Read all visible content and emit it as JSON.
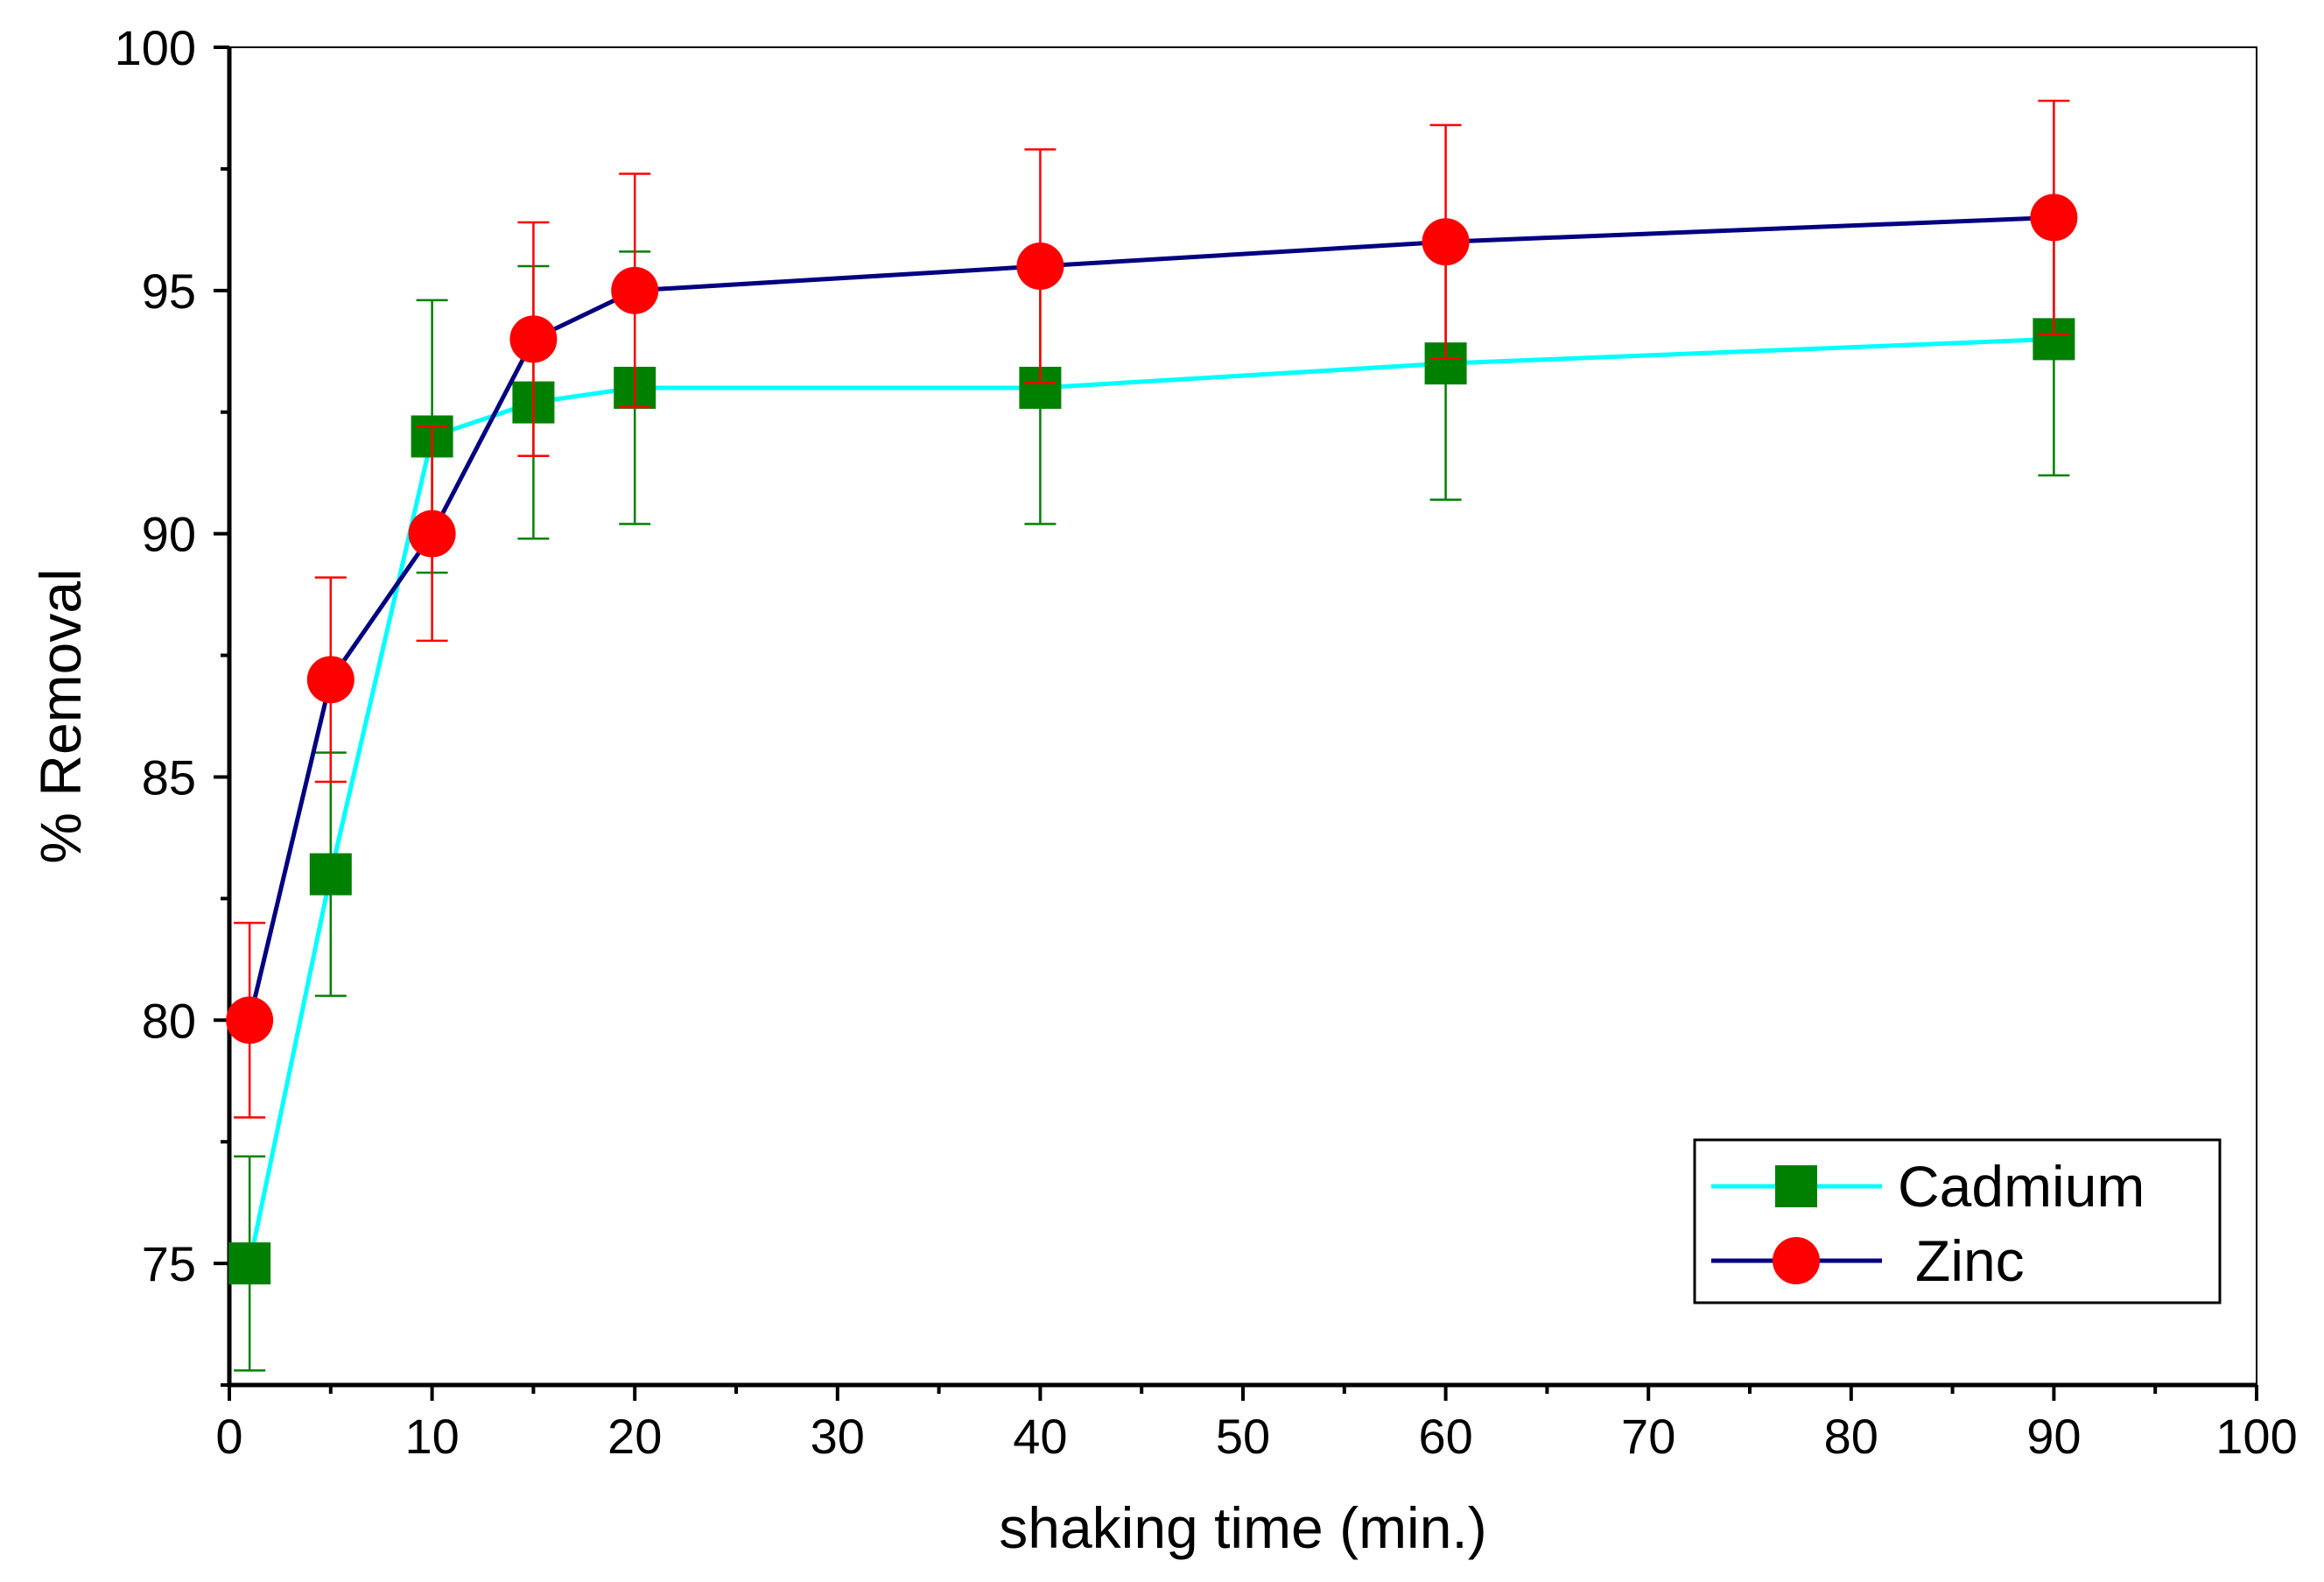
{
  "chart_data": {
    "type": "line",
    "title": "",
    "xlabel": "shaking time (min.)",
    "ylabel": "% Removal",
    "xlim": [
      0,
      100
    ],
    "ylim": [
      72.5,
      100
    ],
    "x_ticks": [
      0,
      10,
      20,
      30,
      40,
      50,
      60,
      70,
      80,
      90,
      100
    ],
    "x_tick_labels": [
      "0",
      "10",
      "20",
      "30",
      "40",
      "50",
      "60",
      "70",
      "80",
      "90",
      "100"
    ],
    "y_ticks": [
      75,
      80,
      85,
      90,
      95,
      100
    ],
    "y_tick_labels": [
      "75",
      "80",
      "85",
      "90",
      "95",
      "100"
    ],
    "grid": false,
    "legend_position": "bottom-right",
    "x": [
      1,
      5,
      10,
      15,
      20,
      40,
      60,
      90
    ],
    "series": [
      {
        "name": "Cadmium",
        "values": [
          75,
          83,
          92,
          92.7,
          93,
          93,
          93.5,
          94
        ],
        "errors": [
          2.2,
          2.5,
          2.8,
          2.8,
          2.8,
          2.8,
          2.8,
          2.8
        ],
        "line_color": "#00ffff",
        "marker": "square",
        "marker_color": "#008000",
        "error_color": "#008000"
      },
      {
        "name": "Zinc",
        "values": [
          80,
          87,
          90,
          94,
          95,
          95.5,
          96,
          96.5
        ],
        "errors": [
          2.0,
          2.1,
          2.2,
          2.4,
          2.4,
          2.4,
          2.4,
          2.4
        ],
        "line_color": "#000080",
        "marker": "circle",
        "marker_color": "#ff0000",
        "error_color": "#ff0000"
      }
    ]
  }
}
